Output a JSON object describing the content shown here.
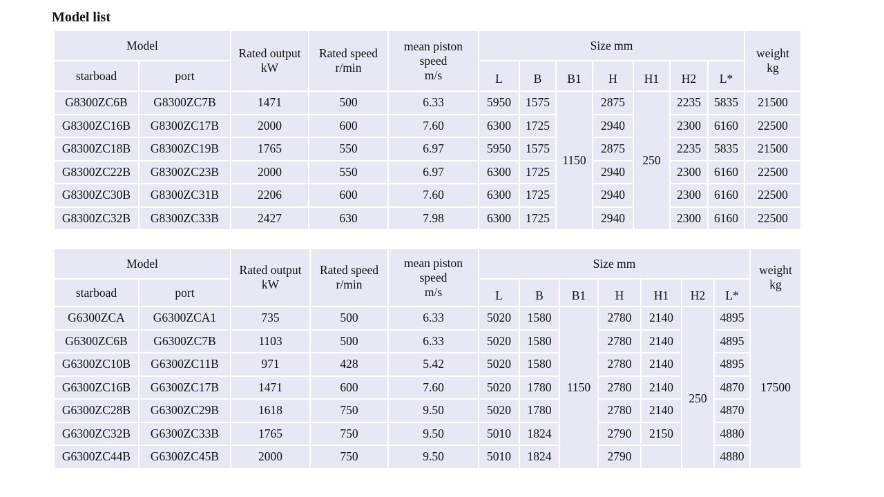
{
  "page": {
    "title": "Model list"
  },
  "header": {
    "model": "Model",
    "starboard": "starboad",
    "port": "port",
    "rated_output": "Rated output",
    "rated_output_unit": "kW",
    "rated_speed": "Rated speed",
    "rated_speed_unit": "r/min",
    "mean_piston": "mean piston",
    "mean_piston_2": "speed",
    "mean_piston_unit": "m/s",
    "size": "Size mm",
    "L": "L",
    "B": "B",
    "B1": "B1",
    "H": "H",
    "H1": "H1",
    "H2": "H2",
    "Lstar": "L*",
    "weight": "weight",
    "weight_unit": "kg"
  },
  "table1": {
    "B1": "1150",
    "H1": "250",
    "rows": [
      {
        "starboard": "G8300ZC6B",
        "port": "G8300ZC7B",
        "kw": "1471",
        "rpm": "500",
        "ms": "6.33",
        "L": "5950",
        "B": "1575",
        "H": "2875",
        "H2": "2235",
        "Lstar": "5835",
        "kg": "21500"
      },
      {
        "starboard": "G8300ZC16B",
        "port": "G8300ZC17B",
        "kw": "2000",
        "rpm": "600",
        "ms": "7.60",
        "L": "6300",
        "B": "1725",
        "H": "2940",
        "H2": "2300",
        "Lstar": "6160",
        "kg": "22500"
      },
      {
        "starboard": "G8300ZC18B",
        "port": "G8300ZC19B",
        "kw": "1765",
        "rpm": "550",
        "ms": "6.97",
        "L": "5950",
        "B": "1575",
        "H": "2875",
        "H2": "2235",
        "Lstar": "5835",
        "kg": "21500"
      },
      {
        "starboard": "G8300ZC22B",
        "port": "G8300ZC23B",
        "kw": "2000",
        "rpm": "550",
        "ms": "6.97",
        "L": "6300",
        "B": "1725",
        "H": "2940",
        "H2": "2300",
        "Lstar": "6160",
        "kg": "22500"
      },
      {
        "starboard": "G8300ZC30B",
        "port": "G8300ZC31B",
        "kw": "2206",
        "rpm": "600",
        "ms": "7.60",
        "L": "6300",
        "B": "1725",
        "H": "2940",
        "H2": "2300",
        "Lstar": "6160",
        "kg": "22500"
      },
      {
        "starboard": "G8300ZC32B",
        "port": "G8300ZC33B",
        "kw": "2427",
        "rpm": "630",
        "ms": "7.98",
        "L": "6300",
        "B": "1725",
        "H": "2940",
        "H2": "2300",
        "Lstar": "6160",
        "kg": "22500"
      }
    ]
  },
  "table2": {
    "B1": "1150",
    "H2": "250",
    "weight": "17500",
    "rows": [
      {
        "starboard": "G6300ZCA",
        "port": "G6300ZCA1",
        "kw": "735",
        "rpm": "500",
        "ms": "6.33",
        "L": "5020",
        "B": "1580",
        "H": "2780",
        "H1": "2140",
        "Lstar": "4895"
      },
      {
        "starboard": "G6300ZC6B",
        "port": "G6300ZC7B",
        "kw": "1103",
        "rpm": "500",
        "ms": "6.33",
        "L": "5020",
        "B": "1580",
        "H": "2780",
        "H1": "2140",
        "Lstar": "4895"
      },
      {
        "starboard": "G6300ZC10B",
        "port": "G6300ZC11B",
        "kw": "971",
        "rpm": "428",
        "ms": "5.42",
        "L": "5020",
        "B": "1580",
        "H": "2780",
        "H1": "2140",
        "Lstar": "4895"
      },
      {
        "starboard": "G6300ZC16B",
        "port": "G6300ZC17B",
        "kw": "1471",
        "rpm": "600",
        "ms": "7.60",
        "L": "5020",
        "B": "1780",
        "H": "2780",
        "H1": "2140",
        "Lstar": "4870"
      },
      {
        "starboard": "G6300ZC28B",
        "port": "G6300ZC29B",
        "kw": "1618",
        "rpm": "750",
        "ms": "9.50",
        "L": "5020",
        "B": "1780",
        "H": "2780",
        "H1": "2140",
        "Lstar": "4870"
      },
      {
        "starboard": "G6300ZC32B",
        "port": "G6300ZC33B",
        "kw": "1765",
        "rpm": "750",
        "ms": "9.50",
        "L": "5010",
        "B": "1824",
        "H": "2790",
        "H1": "2150",
        "Lstar": "4880"
      },
      {
        "starboard": "G6300ZC44B",
        "port": "G6300ZC45B",
        "kw": "2000",
        "rpm": "750",
        "ms": "9.50",
        "L": "5010",
        "B": "1824",
        "H": "2790",
        "H1": "",
        "Lstar": "4880"
      }
    ]
  }
}
